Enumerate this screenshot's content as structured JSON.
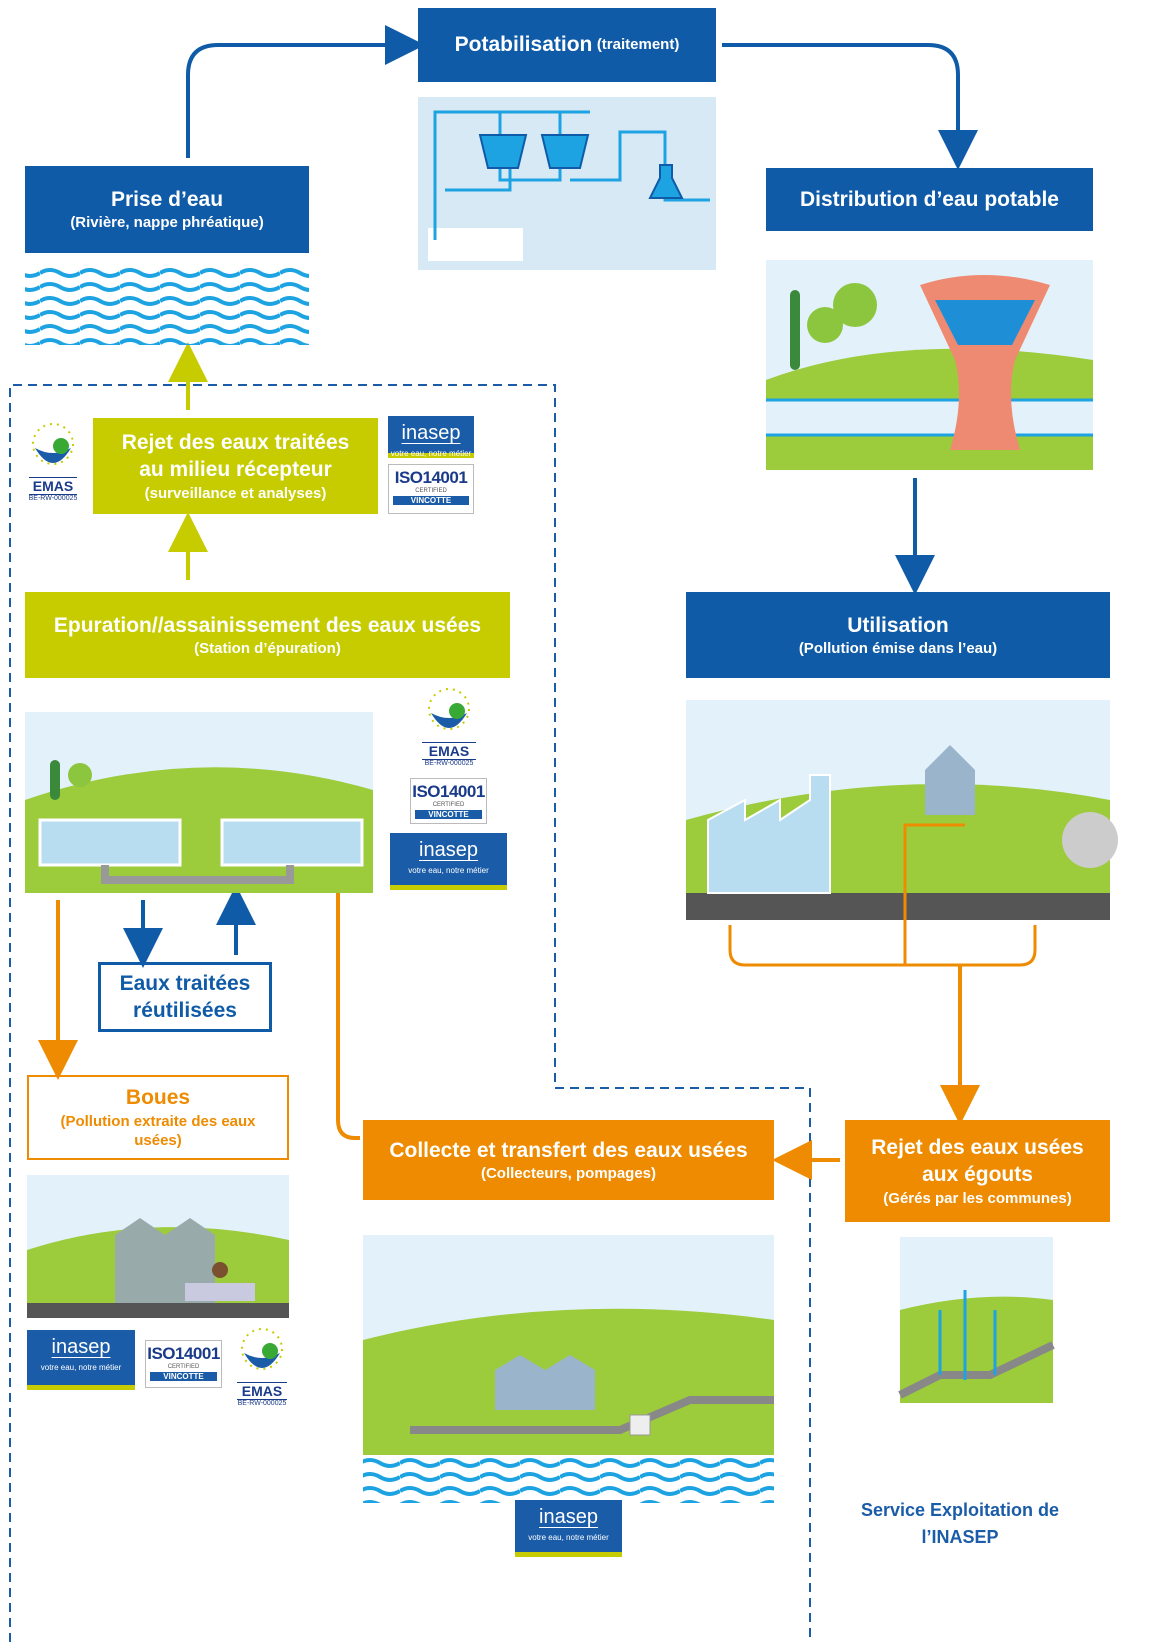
{
  "potabilisation": {
    "title": "Potabilisation",
    "subtitle": "(traitement)"
  },
  "prise_eau": {
    "title": "Prise d’eau",
    "subtitle": "(Rivière, nappe phréatique)"
  },
  "distribution": {
    "title": "Distribution d’eau potable"
  },
  "utilisation": {
    "title": "Utilisation",
    "subtitle": "(Pollution émise dans l’eau)"
  },
  "rejet_egouts": {
    "title": "Rejet des eaux usées aux égouts",
    "subtitle": "(Gérés par les communes)"
  },
  "collecte": {
    "title": "Collecte et transfert des eaux usées",
    "subtitle": "(Collecteurs, pompages)"
  },
  "epuration": {
    "title": "Epuration//assainissement des eaux usées",
    "subtitle": "(Station d’épuration)"
  },
  "rejet_traitees": {
    "title": "Rejet des eaux traitées au milieu récepteur",
    "subtitle": "(surveillance et analyses)"
  },
  "eaux_reutilisees": {
    "title": "Eaux traitées réutilisées"
  },
  "boues": {
    "title": "Boues",
    "subtitle": "(Pollution extraite des eaux usées)"
  },
  "footer": "Service Exploitation de l’INASEP",
  "logos": {
    "inasep": {
      "name": "inasep",
      "tagline": "votre eau, notre métier"
    },
    "iso": {
      "name": "ISO14001",
      "status": "CERTIFIED",
      "certifier": "VINCOTTE"
    },
    "emas": {
      "name": "EMAS",
      "registration": "BE-RW-000025"
    }
  }
}
